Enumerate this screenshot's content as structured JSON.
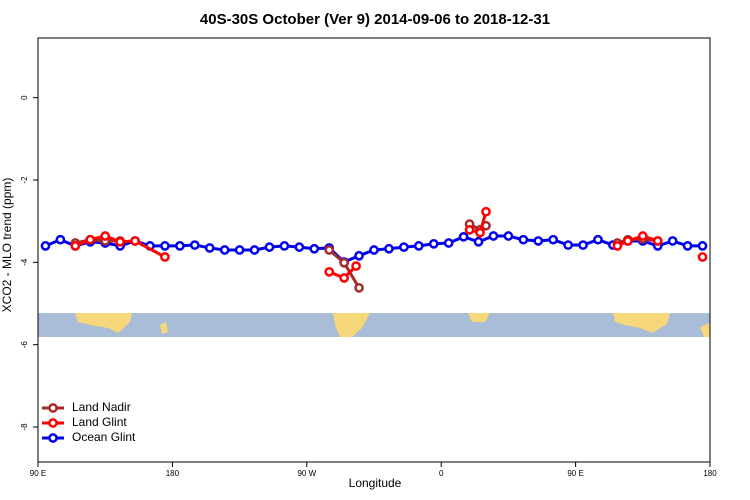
{
  "chart_data": {
    "type": "line",
    "title": "40S-30S October (Ver 9)   2014-09-06 to 2018-12-31",
    "x_label": "Longitude",
    "y_label": "XCO2 - MLO trend (ppm)",
    "xlim": [
      90,
      540
    ],
    "ylim": [
      -8.85,
      1.45
    ],
    "xticks": [
      {
        "value": 90,
        "label": "90 E"
      },
      {
        "value": 180,
        "label": "180"
      },
      {
        "value": 270,
        "label": "90 W"
      },
      {
        "value": 360,
        "label": "0"
      },
      {
        "value": 450,
        "label": "90 E"
      },
      {
        "value": 540,
        "label": "180"
      }
    ],
    "yticks": [
      0,
      -2,
      -4,
      -6,
      -8
    ],
    "grid": false,
    "legend": "bottom-left",
    "series": [
      {
        "name": "Land Nadir",
        "color": "#a52a2a",
        "x": [
          115,
          125,
          135,
          145,
          230,
          285,
          295,
          305,
          340,
          379,
          386,
          390,
          430,
          478,
          485,
          495,
          505
        ],
        "values": [
          -3.53,
          -3.45,
          -3.48,
          -3.48,
          null,
          -3.7,
          -4.01,
          -4.62,
          null,
          -3.07,
          -3.21,
          -3.11,
          null,
          -3.53,
          -3.45,
          -3.43,
          -3.48
        ]
      },
      {
        "name": "Land Glint",
        "color": "#ff0000",
        "x": [
          115,
          125,
          135,
          145,
          155,
          175,
          230,
          285,
          295,
          303,
          340,
          379,
          386,
          390,
          430,
          478,
          485,
          495,
          505,
          520,
          535
        ],
        "values": [
          -3.6,
          -3.45,
          -3.36,
          -3.5,
          -3.48,
          -3.87,
          null,
          -4.23,
          -4.38,
          -4.09,
          null,
          -3.21,
          -3.28,
          -2.77,
          null,
          -3.6,
          -3.48,
          -3.36,
          -3.48,
          null,
          -3.87
        ]
      },
      {
        "name": "Ocean Glint",
        "color": "#0000ee",
        "x": [
          95,
          105,
          115,
          125,
          135,
          145,
          155,
          165,
          175,
          185,
          195,
          205,
          215,
          225,
          235,
          245,
          255,
          265,
          275,
          285,
          295,
          305,
          315,
          325,
          335,
          345,
          355,
          365,
          375,
          385,
          395,
          405,
          415,
          425,
          435,
          445,
          455,
          465,
          475,
          485,
          495,
          505,
          515,
          525,
          535
        ],
        "values": [
          -3.6,
          -3.45,
          -3.6,
          -3.5,
          -3.53,
          -3.6,
          -3.48,
          -3.6,
          -3.6,
          -3.6,
          -3.58,
          -3.65,
          -3.7,
          -3.7,
          -3.7,
          -3.63,
          -3.6,
          -3.63,
          -3.67,
          -3.65,
          -3.99,
          -3.84,
          -3.7,
          -3.67,
          -3.63,
          -3.6,
          -3.55,
          -3.53,
          -3.38,
          -3.5,
          -3.36,
          -3.36,
          -3.45,
          -3.48,
          -3.45,
          -3.58,
          -3.58,
          -3.45,
          -3.58,
          -3.48,
          -3.48,
          -3.6,
          -3.48,
          -3.6,
          -3.6
        ]
      }
    ]
  }
}
